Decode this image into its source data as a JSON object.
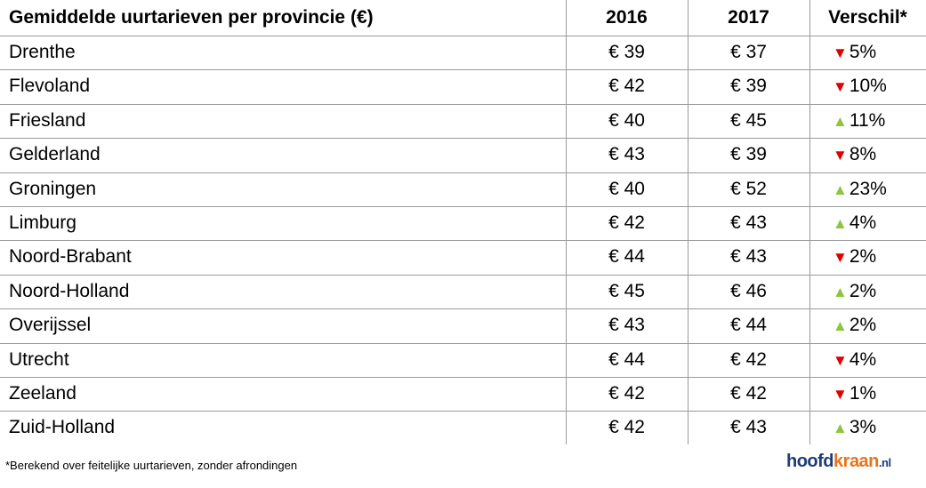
{
  "table": {
    "header": [
      "Gemiddelde uurtarieven per provincie (€)",
      "2016",
      "2017",
      "Verschil*"
    ],
    "rows": [
      {
        "province": "Drenthe",
        "y2016": "€ 39",
        "y2017": "€ 37",
        "arrow": "▼",
        "arrow_color": "#e00000",
        "diff": "5%"
      },
      {
        "province": "Flevoland",
        "y2016": "€ 42",
        "y2017": "€ 39",
        "arrow": "▼",
        "arrow_color": "#e00000",
        "diff": "10%"
      },
      {
        "province": "Friesland",
        "y2016": "€ 40",
        "y2017": "€ 45",
        "arrow": "▲",
        "arrow_color": "#8cc63f",
        "diff": "11%"
      },
      {
        "province": "Gelderland",
        "y2016": "€ 43",
        "y2017": "€ 39",
        "arrow": "▼",
        "arrow_color": "#e00000",
        "diff": "8%"
      },
      {
        "province": "Groningen",
        "y2016": "€ 40",
        "y2017": "€ 52",
        "arrow": "▲",
        "arrow_color": "#8cc63f",
        "diff": "23%"
      },
      {
        "province": "Limburg",
        "y2016": "€ 42",
        "y2017": "€ 43",
        "arrow": "▲",
        "arrow_color": "#8cc63f",
        "diff": "4%"
      },
      {
        "province": "Noord-Brabant",
        "y2016": "€ 44",
        "y2017": "€ 43",
        "arrow": "▼",
        "arrow_color": "#e00000",
        "diff": "2%"
      },
      {
        "province": "Noord-Holland",
        "y2016": "€ 45",
        "y2017": "€ 46",
        "arrow": "▲",
        "arrow_color": "#8cc63f",
        "diff": "2%"
      },
      {
        "province": "Overijssel",
        "y2016": "€ 43",
        "y2017": "€ 44",
        "arrow": "▲",
        "arrow_color": "#8cc63f",
        "diff": "2%"
      },
      {
        "province": "Utrecht",
        "y2016": "€ 44",
        "y2017": "€ 42",
        "arrow": "▼",
        "arrow_color": "#e00000",
        "diff": "4%"
      },
      {
        "province": "Zeeland",
        "y2016": "€ 42",
        "y2017": "€ 42",
        "arrow": "▼",
        "arrow_color": "#e00000",
        "diff": "1%"
      },
      {
        "province": "Zuid-Holland",
        "y2016": "€ 42",
        "y2017": "€ 43",
        "arrow": "▲",
        "arrow_color": "#8cc63f",
        "diff": "3%"
      }
    ]
  },
  "footnote": "*Berekend over feitelijke uurtarieven, zonder afrondingen",
  "logo": {
    "part1": "hoofd",
    "part2": "kraan",
    "tld": ".nl"
  }
}
